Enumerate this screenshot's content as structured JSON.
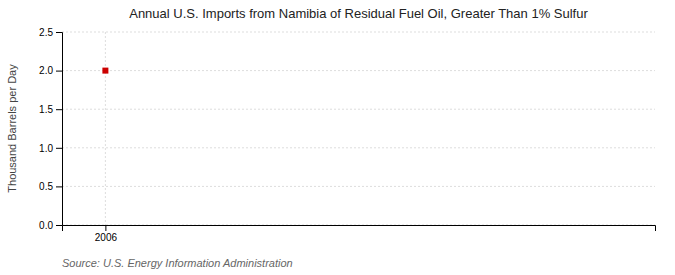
{
  "chart_data": {
    "type": "scatter",
    "title": "Annual U.S. Imports from Namibia of Residual Fuel Oil, Greater Than 1% Sulfur",
    "ylabel": "Thousand Barrels per Day",
    "source": "Source: U.S. Energy Information Administration",
    "x": [
      2006
    ],
    "values": [
      2.0
    ],
    "color": "#cc0000",
    "marker": "square",
    "xlim": [
      2005.4,
      2013.6
    ],
    "ylim": [
      0.0,
      2.5
    ],
    "xticks": [
      2006
    ],
    "yticks": [
      {
        "value": 0.0,
        "label": "0.0"
      },
      0.5,
      {
        "value": 1.0,
        "label": "1.0"
      },
      1.5,
      {
        "value": 2.0,
        "label": "2.0"
      },
      2.5
    ],
    "grid": true
  }
}
